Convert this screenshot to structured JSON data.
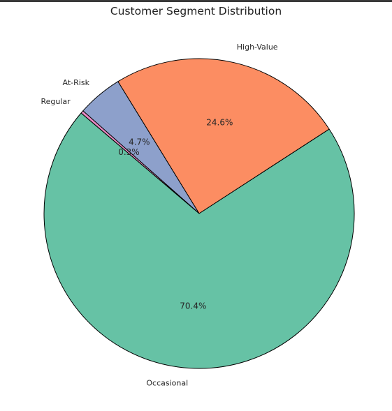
{
  "chart_data": {
    "type": "pie",
    "title": "Customer Segment Distribution",
    "slices": [
      {
        "label": "High-Value",
        "value": 24.6,
        "pct_label": "24.6%",
        "color": "#fc8d62"
      },
      {
        "label": "At-Risk",
        "value": 4.7,
        "pct_label": "4.7%",
        "color": "#8da0cb"
      },
      {
        "label": "Regular",
        "value": 0.3,
        "pct_label": "0.3%",
        "color": "#e78ac3"
      },
      {
        "label": "Occasional",
        "value": 70.4,
        "pct_label": "70.4%",
        "color": "#66c2a5"
      }
    ],
    "start_angle_deg": 33,
    "direction": "counterclockwise",
    "edge_color": "#000000",
    "legend": "none"
  }
}
